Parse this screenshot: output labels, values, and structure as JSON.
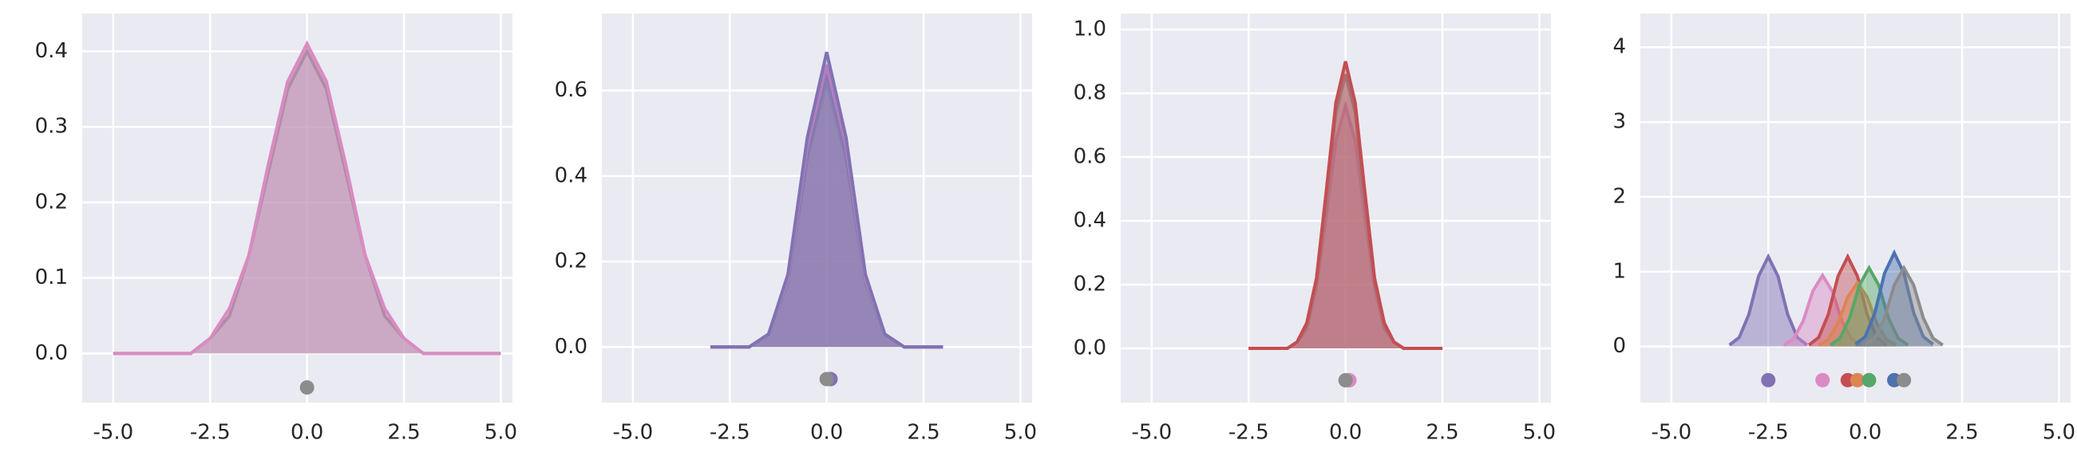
{
  "chart_data": [
    {
      "type": "line",
      "grid": true,
      "x": [
        -5,
        -4.5,
        -4,
        -3.5,
        -3,
        -2.5,
        -2,
        -1.5,
        -1,
        -0.5,
        0,
        0.5,
        1,
        1.5,
        2,
        2.5,
        3,
        3.5,
        4,
        4.5,
        5
      ],
      "series": [
        {
          "color": "#8c8c8c",
          "values": [
            0,
            0,
            0,
            0,
            0,
            0.02,
            0.05,
            0.13,
            0.24,
            0.35,
            0.4,
            0.35,
            0.24,
            0.13,
            0.05,
            0.02,
            0,
            0,
            0,
            0,
            0
          ]
        },
        {
          "color": "#da8bc3",
          "values": [
            0,
            0,
            0,
            0,
            0,
            0.02,
            0.06,
            0.13,
            0.25,
            0.36,
            0.41,
            0.36,
            0.25,
            0.13,
            0.06,
            0.02,
            0,
            0,
            0,
            0,
            0
          ]
        }
      ],
      "markers": [
        {
          "x": 0,
          "y": -0.045,
          "color": "#8c8c8c"
        }
      ],
      "xlim": [
        -5.8,
        5.3
      ],
      "ylim": [
        -0.065,
        0.45
      ],
      "xticks": [
        {
          "value": -5,
          "label": "-5.0"
        },
        -2.5,
        {
          "value": 0,
          "label": "0.0"
        },
        2.5,
        {
          "value": 5,
          "label": "5.0"
        }
      ],
      "yticks": [
        {
          "value": 0,
          "label": "0.0"
        },
        0.1,
        0.2,
        0.3,
        0.4
      ]
    },
    {
      "type": "line",
      "grid": true,
      "x": [
        -3,
        -2.5,
        -2,
        -1.5,
        -1,
        -0.5,
        0,
        0.5,
        1,
        1.5,
        2,
        2.5,
        3
      ],
      "series": [
        {
          "color": "#55a868",
          "values": [
            0,
            0,
            0,
            0.03,
            0.15,
            0.44,
            0.62,
            0.44,
            0.15,
            0.03,
            0,
            0,
            0
          ]
        },
        {
          "color": "#4c72b0",
          "values": [
            0,
            0,
            0,
            0.03,
            0.16,
            0.45,
            0.64,
            0.45,
            0.16,
            0.03,
            0,
            0,
            0
          ]
        },
        {
          "color": "#da8bc3",
          "values": [
            0,
            0,
            0,
            0.03,
            0.16,
            0.47,
            0.66,
            0.47,
            0.16,
            0.03,
            0,
            0,
            0
          ]
        },
        {
          "color": "#8172b3",
          "values": [
            0,
            0,
            0,
            0.03,
            0.17,
            0.49,
            0.69,
            0.49,
            0.17,
            0.03,
            0,
            0,
            0
          ]
        }
      ],
      "markers": [
        {
          "x": 0.1,
          "y": -0.075,
          "color": "#8172b3"
        },
        {
          "x": 0,
          "y": -0.075,
          "color": "#8c8c8c"
        }
      ],
      "xlim": [
        -5.8,
        5.3
      ],
      "ylim": [
        -0.13,
        0.78
      ],
      "xticks": [
        {
          "value": -5,
          "label": "-5.0"
        },
        -2.5,
        {
          "value": 0,
          "label": "0.0"
        },
        2.5,
        {
          "value": 5,
          "label": "5.0"
        }
      ],
      "yticks": [
        {
          "value": 0,
          "label": "0.0"
        },
        0.2,
        0.4,
        0.6
      ]
    },
    {
      "type": "line",
      "grid": true,
      "x": [
        -2.5,
        -2.25,
        -2,
        -1.75,
        -1.5,
        -1.25,
        -1,
        -0.75,
        -0.5,
        -0.25,
        0,
        0.25,
        0.5,
        0.75,
        1,
        1.25,
        1.5,
        1.75,
        2,
        2.25,
        2.5
      ],
      "series": [
        {
          "color": "#da8bc3",
          "values": [
            0,
            0,
            0,
            0,
            0,
            0.02,
            0.06,
            0.19,
            0.41,
            0.65,
            0.76,
            0.65,
            0.41,
            0.19,
            0.06,
            0.02,
            0,
            0,
            0,
            0,
            0
          ]
        },
        {
          "color": "#8c8c8c",
          "values": [
            0,
            0,
            0,
            0,
            0,
            0.02,
            0.07,
            0.21,
            0.46,
            0.74,
            0.86,
            0.74,
            0.46,
            0.21,
            0.07,
            0.02,
            0,
            0,
            0,
            0,
            0
          ]
        },
        {
          "color": "#c44e52",
          "values": [
            0,
            0,
            0,
            0,
            0,
            0.02,
            0.08,
            0.22,
            0.49,
            0.77,
            0.9,
            0.77,
            0.49,
            0.22,
            0.08,
            0.02,
            0,
            0,
            0,
            0,
            0
          ]
        }
      ],
      "markers": [
        {
          "x": 0.1,
          "y": -0.1,
          "color": "#da8bc3"
        },
        {
          "x": 0,
          "y": -0.1,
          "color": "#8c8c8c"
        }
      ],
      "xlim": [
        -5.8,
        5.3
      ],
      "ylim": [
        -0.17,
        1.05
      ],
      "xticks": [
        {
          "value": -5,
          "label": "-5.0"
        },
        -2.5,
        {
          "value": 0,
          "label": "0.0"
        },
        2.5,
        {
          "value": 5,
          "label": "5.0"
        }
      ],
      "yticks": [
        {
          "value": 0,
          "label": "0.0"
        },
        0.2,
        0.4,
        0.6,
        0.8,
        {
          "value": 1,
          "label": "1.0"
        }
      ]
    },
    {
      "type": "line",
      "grid": true,
      "series": [
        {
          "color": "#8172b3",
          "x": [
            -3.5,
            -3.25,
            -3,
            -2.75,
            -2.5,
            -2.25,
            -2,
            -1.75,
            -1.5
          ],
          "values": [
            0.02,
            0.12,
            0.43,
            0.94,
            1.2,
            0.94,
            0.43,
            0.12,
            0.02
          ]
        },
        {
          "color": "#da8bc3",
          "x": [
            -2.1,
            -1.85,
            -1.6,
            -1.35,
            -1.1,
            -0.85,
            -0.6,
            -0.35,
            -0.1
          ],
          "values": [
            0.02,
            0.1,
            0.34,
            0.74,
            0.95,
            0.74,
            0.34,
            0.1,
            0.02
          ]
        },
        {
          "color": "#c44e52",
          "x": [
            -1.45,
            -1.2,
            -0.95,
            -0.7,
            -0.45,
            -0.2,
            0.05,
            0.3,
            0.55
          ],
          "values": [
            0.02,
            0.12,
            0.43,
            0.94,
            1.2,
            0.94,
            0.43,
            0.12,
            0.02
          ]
        },
        {
          "color": "#dd8452",
          "x": [
            -1.2,
            -0.95,
            -0.7,
            -0.45,
            -0.2,
            0.05,
            0.3,
            0.55,
            0.8
          ],
          "values": [
            0.02,
            0.09,
            0.31,
            0.66,
            0.85,
            0.66,
            0.31,
            0.09,
            0.02
          ]
        },
        {
          "color": "#55a868",
          "x": [
            -0.9,
            -0.65,
            -0.4,
            -0.15,
            0.1,
            0.35,
            0.6,
            0.85,
            1.1
          ],
          "values": [
            0.02,
            0.11,
            0.38,
            0.82,
            1.05,
            0.82,
            0.38,
            0.11,
            0.02
          ]
        },
        {
          "color": "#4c72b0",
          "x": [
            -0.25,
            0,
            0.25,
            0.5,
            0.75,
            1,
            1.25,
            1.5,
            1.75
          ],
          "values": [
            0.03,
            0.13,
            0.45,
            0.98,
            1.25,
            0.98,
            0.45,
            0.13,
            0.03
          ]
        },
        {
          "color": "#8c8c8c",
          "x": [
            0,
            0.25,
            0.5,
            0.75,
            1,
            1.25,
            1.5,
            1.75,
            2
          ],
          "values": [
            0.02,
            0.11,
            0.38,
            0.82,
            1.05,
            0.82,
            0.38,
            0.11,
            0.02
          ]
        }
      ],
      "markers": [
        {
          "x": -2.5,
          "y": -0.45,
          "color": "#8172b3"
        },
        {
          "x": -1.1,
          "y": -0.45,
          "color": "#da8bc3"
        },
        {
          "x": -0.45,
          "y": -0.45,
          "color": "#c44e52"
        },
        {
          "x": -0.2,
          "y": -0.45,
          "color": "#dd8452"
        },
        {
          "x": 0.1,
          "y": -0.45,
          "color": "#55a868"
        },
        {
          "x": 0.75,
          "y": -0.45,
          "color": "#4c72b0"
        },
        {
          "x": 1,
          "y": -0.45,
          "color": "#8c8c8c"
        }
      ],
      "xlim": [
        -5.8,
        5.3
      ],
      "ylim": [
        -0.75,
        4.45
      ],
      "xticks": [
        {
          "value": -5,
          "label": "-5.0"
        },
        -2.5,
        {
          "value": 0,
          "label": "0.0"
        },
        2.5,
        {
          "value": 5,
          "label": "5.0"
        }
      ],
      "yticks": [
        0,
        1,
        2,
        3,
        4
      ]
    }
  ]
}
